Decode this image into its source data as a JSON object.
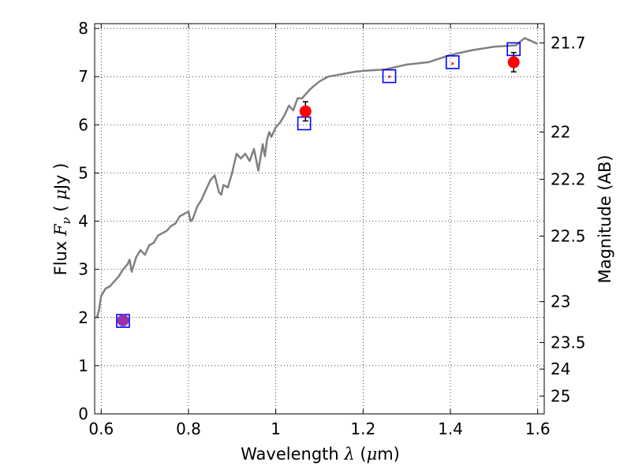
{
  "chart_data": {
    "type": "scatter",
    "xlabel_parts": [
      "Wavelength  ",
      "λ",
      " (",
      "μ",
      "m)"
    ],
    "ylabel_parts": [
      "Flux  ",
      "F",
      "ν",
      "  ( ",
      "μ",
      "Jy )"
    ],
    "right_ylabel": "Magnitude (AB)",
    "xlim": [
      0.585,
      1.615
    ],
    "ylim": [
      0,
      8.1
    ],
    "x_ticks": [
      0.6,
      0.8,
      1.0,
      1.2,
      1.4,
      1.6
    ],
    "x_tick_labels": [
      "0.6",
      "0.8",
      "1",
      "1.2",
      "1.4",
      "1.6"
    ],
    "y_ticks": [
      0,
      1,
      2,
      3,
      4,
      5,
      6,
      7,
      8
    ],
    "y_tick_labels": [
      "0",
      "1",
      "2",
      "3",
      "4",
      "5",
      "6",
      "7",
      "8"
    ],
    "right_ticks": [
      {
        "label": "21.7",
        "flux": 7.7
      },
      {
        "label": "22",
        "flux": 5.85
      },
      {
        "label": "22.2",
        "flux": 4.87
      },
      {
        "label": "22.5",
        "flux": 3.69
      },
      {
        "label": "23",
        "flux": 2.33
      },
      {
        "label": "23.5",
        "flux": 1.48
      },
      {
        "label": "24",
        "flux": 0.93
      },
      {
        "label": "25",
        "flux": 0.37
      }
    ],
    "grid": true,
    "series": [
      {
        "kind": "line",
        "color": "#808080",
        "x": [
          0.59,
          0.595,
          0.6,
          0.61,
          0.62,
          0.63,
          0.64,
          0.65,
          0.66,
          0.665,
          0.67,
          0.68,
          0.69,
          0.7,
          0.71,
          0.72,
          0.73,
          0.74,
          0.75,
          0.76,
          0.77,
          0.78,
          0.79,
          0.8,
          0.805,
          0.81,
          0.82,
          0.83,
          0.84,
          0.85,
          0.86,
          0.87,
          0.875,
          0.88,
          0.89,
          0.9,
          0.91,
          0.92,
          0.93,
          0.94,
          0.95,
          0.96,
          0.97,
          0.975,
          0.98,
          0.985,
          0.99,
          1.0,
          1.01,
          1.02,
          1.03,
          1.04,
          1.05,
          1.06,
          1.08,
          1.1,
          1.12,
          1.15,
          1.18,
          1.2,
          1.25,
          1.3,
          1.35,
          1.4,
          1.45,
          1.5,
          1.55,
          1.57,
          1.6
        ],
        "y": [
          2.0,
          2.15,
          2.45,
          2.6,
          2.65,
          2.75,
          2.85,
          3.0,
          3.1,
          3.2,
          2.95,
          3.25,
          3.4,
          3.3,
          3.5,
          3.55,
          3.7,
          3.75,
          3.8,
          3.9,
          3.95,
          4.1,
          4.15,
          4.2,
          4.0,
          4.05,
          4.3,
          4.45,
          4.65,
          4.85,
          4.95,
          4.6,
          4.55,
          4.75,
          4.7,
          5.0,
          5.4,
          5.3,
          5.4,
          5.25,
          5.5,
          5.05,
          5.6,
          5.35,
          5.7,
          5.85,
          5.75,
          5.95,
          6.05,
          6.2,
          6.4,
          6.3,
          6.55,
          6.55,
          6.75,
          6.9,
          7.0,
          7.05,
          7.1,
          7.12,
          7.15,
          7.25,
          7.3,
          7.45,
          7.55,
          7.62,
          7.65,
          7.8,
          7.68
        ]
      },
      {
        "kind": "squares",
        "color": "#0000ff",
        "x": [
          0.65,
          1.065,
          1.26,
          1.405,
          1.545
        ],
        "y": [
          1.93,
          6.03,
          7.01,
          7.3,
          7.57
        ]
      },
      {
        "kind": "points",
        "color": "#ff0000",
        "x": [
          0.65,
          1.068,
          1.26,
          1.405,
          1.545
        ],
        "y": [
          1.94,
          6.28,
          7.0,
          7.27,
          7.3
        ],
        "yerr": [
          0.1,
          0.2,
          0.0,
          0.0,
          0.2
        ]
      }
    ]
  }
}
